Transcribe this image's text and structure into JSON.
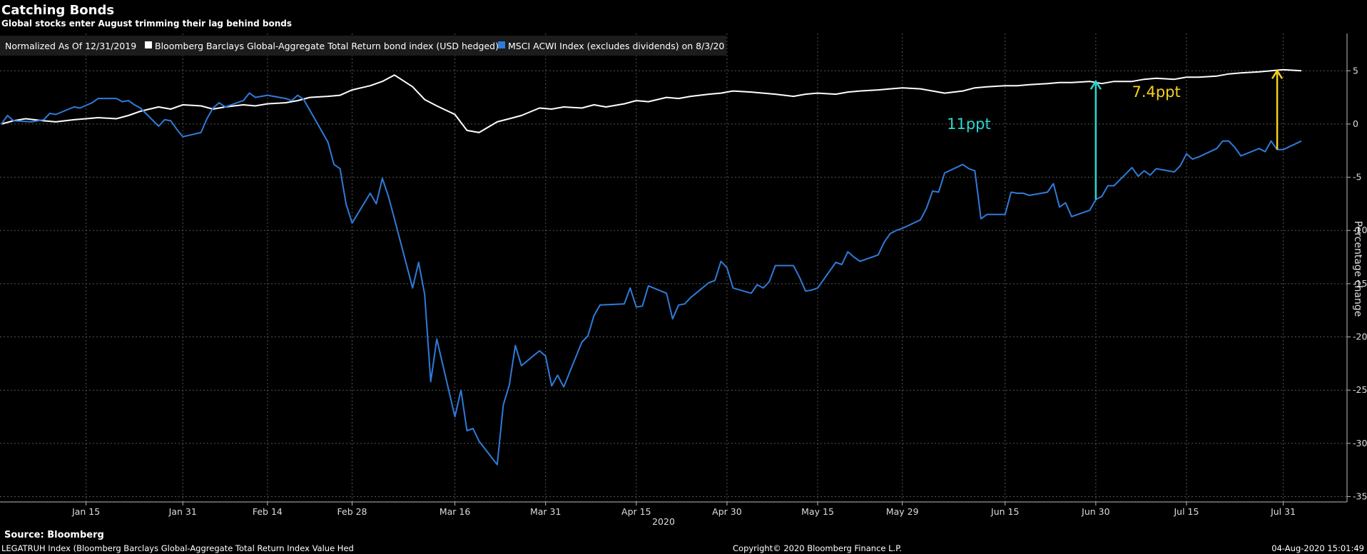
{
  "chart_data": {
    "type": "line",
    "title": "Catching Bonds",
    "subtitle": "Global stocks enter August trimming their lag behind bonds",
    "legend": {
      "prefix": "Normalized As Of 12/31/2019",
      "placement": "top-left"
    },
    "ylabel": "Percentage change",
    "ylim": [
      -35.5,
      8.5
    ],
    "yticks": [
      5,
      0,
      -5,
      -10,
      -15,
      -20,
      -25,
      -30,
      -35
    ],
    "grid": true,
    "x_start": "2020-01-01",
    "x_end": "2020-08-03",
    "xticks": [
      {
        "date": "2020-01-15",
        "label": "Jan 15"
      },
      {
        "date": "2020-01-31",
        "label": "Jan 31"
      },
      {
        "date": "2020-02-14",
        "label": "Feb 14"
      },
      {
        "date": "2020-02-28",
        "label": "Feb 28"
      },
      {
        "date": "2020-03-16",
        "label": "Mar 16"
      },
      {
        "date": "2020-03-31",
        "label": "Mar 31"
      },
      {
        "date": "2020-04-15",
        "label": "Apr 15"
      },
      {
        "date": "2020-04-30",
        "label": "Apr 30"
      },
      {
        "date": "2020-05-15",
        "label": "May 15"
      },
      {
        "date": "2020-05-29",
        "label": "May 29"
      },
      {
        "date": "2020-06-15",
        "label": "Jun 15"
      },
      {
        "date": "2020-06-30",
        "label": "Jun 30"
      },
      {
        "date": "2020-07-15",
        "label": "Jul 15"
      },
      {
        "date": "2020-07-31",
        "label": "Jul 31"
      }
    ],
    "year_label": "2020",
    "series": [
      {
        "name": "Bloomberg Barclays Global-Aggregate Total Return bond index (USD hedged)",
        "color": "#ffffff",
        "points": [
          [
            "2020-01-01",
            0.0
          ],
          [
            "2020-01-03",
            0.3
          ],
          [
            "2020-01-05",
            0.5
          ],
          [
            "2020-01-08",
            0.3
          ],
          [
            "2020-01-10",
            0.2
          ],
          [
            "2020-01-13",
            0.4
          ],
          [
            "2020-01-15",
            0.5
          ],
          [
            "2020-01-17",
            0.6
          ],
          [
            "2020-01-20",
            0.5
          ],
          [
            "2020-01-22",
            0.8
          ],
          [
            "2020-01-24",
            1.2
          ],
          [
            "2020-01-27",
            1.6
          ],
          [
            "2020-01-29",
            1.4
          ],
          [
            "2020-01-31",
            1.8
          ],
          [
            "2020-02-03",
            1.7
          ],
          [
            "2020-02-05",
            1.4
          ],
          [
            "2020-02-07",
            1.6
          ],
          [
            "2020-02-10",
            1.8
          ],
          [
            "2020-02-12",
            1.7
          ],
          [
            "2020-02-14",
            1.9
          ],
          [
            "2020-02-17",
            2.0
          ],
          [
            "2020-02-19",
            2.2
          ],
          [
            "2020-02-21",
            2.5
          ],
          [
            "2020-02-24",
            2.6
          ],
          [
            "2020-02-26",
            2.7
          ],
          [
            "2020-02-28",
            3.2
          ],
          [
            "2020-03-02",
            3.6
          ],
          [
            "2020-03-04",
            4.0
          ],
          [
            "2020-03-06",
            4.6
          ],
          [
            "2020-03-09",
            3.5
          ],
          [
            "2020-03-11",
            2.3
          ],
          [
            "2020-03-13",
            1.7
          ],
          [
            "2020-03-16",
            0.9
          ],
          [
            "2020-03-18",
            -0.6
          ],
          [
            "2020-03-20",
            -0.8
          ],
          [
            "2020-03-23",
            0.2
          ],
          [
            "2020-03-25",
            0.5
          ],
          [
            "2020-03-27",
            0.8
          ],
          [
            "2020-03-30",
            1.5
          ],
          [
            "2020-04-01",
            1.4
          ],
          [
            "2020-04-03",
            1.6
          ],
          [
            "2020-04-06",
            1.5
          ],
          [
            "2020-04-08",
            1.8
          ],
          [
            "2020-04-10",
            1.6
          ],
          [
            "2020-04-13",
            1.9
          ],
          [
            "2020-04-15",
            2.2
          ],
          [
            "2020-04-17",
            2.1
          ],
          [
            "2020-04-20",
            2.5
          ],
          [
            "2020-04-22",
            2.4
          ],
          [
            "2020-04-24",
            2.6
          ],
          [
            "2020-04-27",
            2.8
          ],
          [
            "2020-04-29",
            2.9
          ],
          [
            "2020-05-01",
            3.1
          ],
          [
            "2020-05-04",
            3.0
          ],
          [
            "2020-05-06",
            2.9
          ],
          [
            "2020-05-08",
            2.8
          ],
          [
            "2020-05-11",
            2.6
          ],
          [
            "2020-05-13",
            2.8
          ],
          [
            "2020-05-15",
            2.9
          ],
          [
            "2020-05-18",
            2.8
          ],
          [
            "2020-05-20",
            3.0
          ],
          [
            "2020-05-22",
            3.1
          ],
          [
            "2020-05-25",
            3.2
          ],
          [
            "2020-05-27",
            3.3
          ],
          [
            "2020-05-29",
            3.4
          ],
          [
            "2020-06-01",
            3.3
          ],
          [
            "2020-06-03",
            3.1
          ],
          [
            "2020-06-05",
            2.9
          ],
          [
            "2020-06-08",
            3.1
          ],
          [
            "2020-06-10",
            3.4
          ],
          [
            "2020-06-12",
            3.5
          ],
          [
            "2020-06-15",
            3.6
          ],
          [
            "2020-06-17",
            3.6
          ],
          [
            "2020-06-19",
            3.7
          ],
          [
            "2020-06-22",
            3.8
          ],
          [
            "2020-06-24",
            3.9
          ],
          [
            "2020-06-26",
            3.9
          ],
          [
            "2020-06-29",
            4.0
          ],
          [
            "2020-07-01",
            3.8
          ],
          [
            "2020-07-03",
            4.0
          ],
          [
            "2020-07-06",
            4.0
          ],
          [
            "2020-07-08",
            4.2
          ],
          [
            "2020-07-10",
            4.3
          ],
          [
            "2020-07-13",
            4.2
          ],
          [
            "2020-07-15",
            4.4
          ],
          [
            "2020-07-17",
            4.4
          ],
          [
            "2020-07-20",
            4.5
          ],
          [
            "2020-07-22",
            4.7
          ],
          [
            "2020-07-24",
            4.8
          ],
          [
            "2020-07-27",
            4.9
          ],
          [
            "2020-07-29",
            5.0
          ],
          [
            "2020-07-31",
            5.1
          ],
          [
            "2020-08-03",
            5.0
          ]
        ]
      },
      {
        "name": "MSCI ACWI Index (excludes dividends) on 8/3/20",
        "color": "#2f7bd9",
        "points": [
          [
            "2020-01-01",
            0.0
          ],
          [
            "2020-01-02",
            0.8
          ],
          [
            "2020-01-03",
            0.3
          ],
          [
            "2020-01-06",
            0.2
          ],
          [
            "2020-01-08",
            0.4
          ],
          [
            "2020-01-09",
            1.0
          ],
          [
            "2020-01-10",
            0.9
          ],
          [
            "2020-01-13",
            1.6
          ],
          [
            "2020-01-14",
            1.5
          ],
          [
            "2020-01-16",
            2.0
          ],
          [
            "2020-01-17",
            2.4
          ],
          [
            "2020-01-20",
            2.4
          ],
          [
            "2020-01-21",
            2.1
          ],
          [
            "2020-01-22",
            2.2
          ],
          [
            "2020-01-23",
            1.8
          ],
          [
            "2020-01-24",
            1.5
          ],
          [
            "2020-01-27",
            -0.2
          ],
          [
            "2020-01-28",
            0.4
          ],
          [
            "2020-01-29",
            0.3
          ],
          [
            "2020-01-30",
            -0.5
          ],
          [
            "2020-01-31",
            -1.2
          ],
          [
            "2020-02-03",
            -0.8
          ],
          [
            "2020-02-04",
            0.5
          ],
          [
            "2020-02-05",
            1.5
          ],
          [
            "2020-02-06",
            2.0
          ],
          [
            "2020-02-07",
            1.6
          ],
          [
            "2020-02-10",
            2.2
          ],
          [
            "2020-02-11",
            2.9
          ],
          [
            "2020-02-12",
            2.5
          ],
          [
            "2020-02-13",
            2.6
          ],
          [
            "2020-02-14",
            2.7
          ],
          [
            "2020-02-17",
            2.4
          ],
          [
            "2020-02-18",
            2.2
          ],
          [
            "2020-02-19",
            2.7
          ],
          [
            "2020-02-20",
            2.3
          ],
          [
            "2020-02-21",
            1.3
          ],
          [
            "2020-02-24",
            -1.7
          ],
          [
            "2020-02-25",
            -3.8
          ],
          [
            "2020-02-26",
            -4.2
          ],
          [
            "2020-02-27",
            -7.5
          ],
          [
            "2020-02-28",
            -9.3
          ],
          [
            "2020-03-02",
            -6.5
          ],
          [
            "2020-03-03",
            -7.5
          ],
          [
            "2020-03-04",
            -5.1
          ],
          [
            "2020-03-05",
            -6.8
          ],
          [
            "2020-03-06",
            -8.9
          ],
          [
            "2020-03-09",
            -15.4
          ],
          [
            "2020-03-10",
            -13.0
          ],
          [
            "2020-03-11",
            -16.0
          ],
          [
            "2020-03-12",
            -24.2
          ],
          [
            "2020-03-13",
            -20.2
          ],
          [
            "2020-03-16",
            -27.5
          ],
          [
            "2020-03-17",
            -25.0
          ],
          [
            "2020-03-18",
            -28.8
          ],
          [
            "2020-03-19",
            -28.6
          ],
          [
            "2020-03-20",
            -29.8
          ],
          [
            "2020-03-23",
            -32.0
          ],
          [
            "2020-03-24",
            -26.4
          ],
          [
            "2020-03-25",
            -24.5
          ],
          [
            "2020-03-26",
            -20.8
          ],
          [
            "2020-03-27",
            -22.7
          ],
          [
            "2020-03-30",
            -21.3
          ],
          [
            "2020-03-31",
            -21.8
          ],
          [
            "2020-04-01",
            -24.6
          ],
          [
            "2020-04-02",
            -23.6
          ],
          [
            "2020-04-03",
            -24.7
          ],
          [
            "2020-04-06",
            -20.5
          ],
          [
            "2020-04-07",
            -19.9
          ],
          [
            "2020-04-08",
            -18.0
          ],
          [
            "2020-04-09",
            -17.0
          ],
          [
            "2020-04-13",
            -16.9
          ],
          [
            "2020-04-14",
            -15.4
          ],
          [
            "2020-04-15",
            -17.2
          ],
          [
            "2020-04-16",
            -17.1
          ],
          [
            "2020-04-17",
            -15.2
          ],
          [
            "2020-04-20",
            -15.9
          ],
          [
            "2020-04-21",
            -18.3
          ],
          [
            "2020-04-22",
            -17.0
          ],
          [
            "2020-04-23",
            -16.9
          ],
          [
            "2020-04-24",
            -16.3
          ],
          [
            "2020-04-27",
            -14.9
          ],
          [
            "2020-04-28",
            -14.7
          ],
          [
            "2020-04-29",
            -12.9
          ],
          [
            "2020-04-30",
            -13.5
          ],
          [
            "2020-05-01",
            -15.4
          ],
          [
            "2020-05-04",
            -15.9
          ],
          [
            "2020-05-05",
            -15.1
          ],
          [
            "2020-05-06",
            -15.4
          ],
          [
            "2020-05-07",
            -14.8
          ],
          [
            "2020-05-08",
            -13.3
          ],
          [
            "2020-05-11",
            -13.3
          ],
          [
            "2020-05-12",
            -14.4
          ],
          [
            "2020-05-13",
            -15.7
          ],
          [
            "2020-05-14",
            -15.6
          ],
          [
            "2020-05-15",
            -15.4
          ],
          [
            "2020-05-18",
            -13.0
          ],
          [
            "2020-05-19",
            -13.2
          ],
          [
            "2020-05-20",
            -12.0
          ],
          [
            "2020-05-21",
            -12.5
          ],
          [
            "2020-05-22",
            -12.9
          ],
          [
            "2020-05-25",
            -12.3
          ],
          [
            "2020-05-26",
            -11.1
          ],
          [
            "2020-05-27",
            -10.3
          ],
          [
            "2020-05-28",
            -10.0
          ],
          [
            "2020-05-29",
            -9.8
          ],
          [
            "2020-06-01",
            -9.0
          ],
          [
            "2020-06-02",
            -7.9
          ],
          [
            "2020-06-03",
            -6.3
          ],
          [
            "2020-06-04",
            -6.4
          ],
          [
            "2020-06-05",
            -4.6
          ],
          [
            "2020-06-08",
            -3.8
          ],
          [
            "2020-06-09",
            -4.2
          ],
          [
            "2020-06-10",
            -4.4
          ],
          [
            "2020-06-11",
            -8.9
          ],
          [
            "2020-06-12",
            -8.5
          ],
          [
            "2020-06-15",
            -8.5
          ],
          [
            "2020-06-16",
            -6.4
          ],
          [
            "2020-06-17",
            -6.5
          ],
          [
            "2020-06-18",
            -6.5
          ],
          [
            "2020-06-19",
            -6.7
          ],
          [
            "2020-06-22",
            -6.4
          ],
          [
            "2020-06-23",
            -5.6
          ],
          [
            "2020-06-24",
            -7.8
          ],
          [
            "2020-06-25",
            -7.4
          ],
          [
            "2020-06-26",
            -8.7
          ],
          [
            "2020-06-29",
            -8.1
          ],
          [
            "2020-06-30",
            -7.1
          ],
          [
            "2020-07-01",
            -6.8
          ],
          [
            "2020-07-02",
            -5.8
          ],
          [
            "2020-07-03",
            -5.8
          ],
          [
            "2020-07-06",
            -4.1
          ],
          [
            "2020-07-07",
            -4.9
          ],
          [
            "2020-07-08",
            -4.4
          ],
          [
            "2020-07-09",
            -4.8
          ],
          [
            "2020-07-10",
            -4.2
          ],
          [
            "2020-07-13",
            -4.5
          ],
          [
            "2020-07-14",
            -3.9
          ],
          [
            "2020-07-15",
            -2.8
          ],
          [
            "2020-07-16",
            -3.3
          ],
          [
            "2020-07-17",
            -3.1
          ],
          [
            "2020-07-20",
            -2.3
          ],
          [
            "2020-07-21",
            -1.6
          ],
          [
            "2020-07-22",
            -1.6
          ],
          [
            "2020-07-23",
            -2.2
          ],
          [
            "2020-07-24",
            -3.0
          ],
          [
            "2020-07-27",
            -2.3
          ],
          [
            "2020-07-28",
            -2.6
          ],
          [
            "2020-07-29",
            -1.6
          ],
          [
            "2020-07-30",
            -2.4
          ],
          [
            "2020-07-31",
            -2.4
          ],
          [
            "2020-08-03",
            -1.6
          ]
        ]
      }
    ],
    "annotations": [
      {
        "text": "11ppt",
        "color": "#2ed6d0",
        "date": "2020-06-30",
        "from": -7.1,
        "to": 4.0,
        "label_date": "2020-06-09",
        "label_y": 0.0
      },
      {
        "text": "7.4ppt",
        "color": "#f5d21f",
        "date": "2020-07-30",
        "from": -2.4,
        "to": 5.0,
        "label_date": "2020-07-10",
        "label_y": 3.0
      }
    ]
  },
  "footer": {
    "source": "Source: Bloomberg",
    "ticker": "LEGATRUH Index (Bloomberg Barclays Global-Aggregate Total Return Index Value Hed",
    "copyright": "Copyright© 2020 Bloomberg Finance L.P.",
    "timestamp": "04-Aug-2020 15:01:49"
  }
}
